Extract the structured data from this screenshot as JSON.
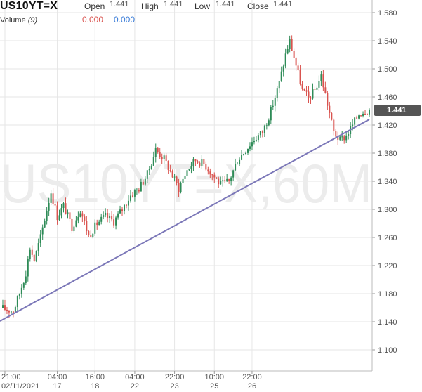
{
  "header": {
    "symbol": "US10YT=X",
    "open_label": "Open",
    "open_value": "1.441",
    "high_label": "High",
    "high_value": "1.441",
    "low_label": "Low",
    "low_value": "1.441",
    "close_label": "Close",
    "close_value": "1.441",
    "volume_label": "Volume",
    "volume_period": "(9)",
    "volume_value_a": "0.000",
    "volume_value_b": "0.000"
  },
  "watermark": "US10YT=X,60M",
  "current_price": "1.441",
  "colors": {
    "up": "#2e8b57",
    "down": "#d9534f",
    "trendline": "#7b77b8",
    "grid": "#e6e6e6",
    "axis_text": "#555555",
    "volume_a": "#d9534f",
    "volume_b": "#3b7dd8",
    "badge": "#555555",
    "watermark": "#ececec"
  },
  "chart_data": {
    "type": "candlestick",
    "title": "US10YT=X",
    "y_ticks": [
      "1.580",
      "1.540",
      "1.500",
      "1.460",
      "1.420",
      "1.380",
      "1.340",
      "1.300",
      "1.260",
      "1.220",
      "1.180",
      "1.140",
      "1.100"
    ],
    "ylim": [
      1.08,
      1.59
    ],
    "x_ticks": [
      {
        "top": "21:00",
        "bottom": "02/11/2021"
      },
      {
        "top": "04:00",
        "bottom": "17"
      },
      {
        "top": "16:00",
        "bottom": "18"
      },
      {
        "top": "04:00",
        "bottom": "22"
      },
      {
        "top": "22:00",
        "bottom": "23"
      },
      {
        "top": "10:00",
        "bottom": "25"
      },
      {
        "top": "22:00",
        "bottom": "26"
      }
    ],
    "grid": true,
    "series": [
      {
        "path": [
          [
            0,
            1.16
          ],
          [
            6,
            1.155
          ],
          [
            9,
            1.18
          ],
          [
            12,
            1.21
          ],
          [
            14,
            1.245
          ],
          [
            16,
            1.228
          ],
          [
            19,
            1.26
          ],
          [
            22,
            1.3
          ],
          [
            24,
            1.325
          ],
          [
            27,
            1.29
          ],
          [
            30,
            1.305
          ],
          [
            34,
            1.275
          ],
          [
            38,
            1.3
          ],
          [
            42,
            1.262
          ],
          [
            46,
            1.28
          ],
          [
            50,
            1.29
          ],
          [
            54,
            1.283
          ],
          [
            58,
            1.3
          ],
          [
            62,
            1.32
          ],
          [
            66,
            1.33
          ],
          [
            70,
            1.35
          ],
          [
            74,
            1.385
          ],
          [
            78,
            1.372
          ],
          [
            82,
            1.348
          ],
          [
            85,
            1.33
          ],
          [
            89,
            1.356
          ],
          [
            93,
            1.37
          ],
          [
            97,
            1.365
          ],
          [
            101,
            1.35
          ],
          [
            105,
            1.335
          ],
          [
            109,
            1.34
          ],
          [
            113,
            1.37
          ],
          [
            117,
            1.385
          ],
          [
            121,
            1.4
          ],
          [
            125,
            1.41
          ],
          [
            129,
            1.44
          ],
          [
            133,
            1.48
          ],
          [
            136,
            1.52
          ],
          [
            138,
            1.54
          ],
          [
            141,
            1.505
          ],
          [
            144,
            1.47
          ],
          [
            147,
            1.458
          ],
          [
            150,
            1.47
          ],
          [
            153,
            1.49
          ],
          [
            156,
            1.45
          ],
          [
            159,
            1.41
          ],
          [
            162,
            1.398
          ],
          [
            165,
            1.405
          ],
          [
            168,
            1.42
          ],
          [
            171,
            1.436
          ],
          [
            174,
            1.441
          ]
        ]
      }
    ],
    "annotations": [
      {
        "type": "trendline",
        "from": [
          0,
          1.141
        ],
        "to": [
          175,
          1.428
        ]
      }
    ]
  }
}
